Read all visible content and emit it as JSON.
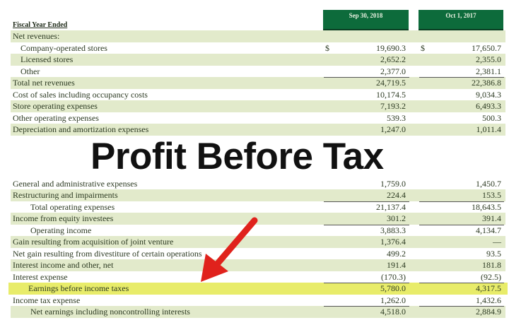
{
  "header": {
    "label": "Fiscal Year Ended",
    "columns": [
      "Sep 30, 2018",
      "Oct 1, 2017"
    ]
  },
  "overlay_text": "Profit Before Tax",
  "colors": {
    "header_green": "#0d6b3b",
    "row_shade": "#e2eacb",
    "highlight": "#e8ec6a",
    "arrow": "#e0221c"
  },
  "rows": [
    {
      "label": "Net revenues:",
      "indent": 0,
      "v1": "",
      "v2": ""
    },
    {
      "label": "Company-operated stores",
      "indent": 1,
      "cur": "$",
      "v1": "19,690.3",
      "v2": "17,650.7"
    },
    {
      "label": "Licensed stores",
      "indent": 1,
      "v1": "2,652.2",
      "v2": "2,355.0"
    },
    {
      "label": "Other",
      "indent": 1,
      "v1": "2,377.0",
      "v2": "2,381.1"
    },
    {
      "label": "Total net revenues",
      "indent": 0,
      "v1": "24,719.5",
      "v2": "22,386.8",
      "rule": true
    },
    {
      "label": "Cost of sales including occupancy costs",
      "indent": 0,
      "v1": "10,174.5",
      "v2": "9,034.3"
    },
    {
      "label": "Store operating expenses",
      "indent": 0,
      "v1": "7,193.2",
      "v2": "6,493.3"
    },
    {
      "label": "Other operating expenses",
      "indent": 0,
      "v1": "539.3",
      "v2": "500.3"
    },
    {
      "label": "Depreciation and amortization expenses",
      "indent": 0,
      "v1": "1,247.0",
      "v2": "1,011.4"
    },
    {
      "label": "General and administrative expenses",
      "indent": 0,
      "v1": "1,759.0",
      "v2": "1,450.7"
    },
    {
      "label": "Restructuring and impairments",
      "indent": 0,
      "v1": "224.4",
      "v2": "153.5"
    },
    {
      "label": "Total operating expenses",
      "indent": 2,
      "v1": "21,137.4",
      "v2": "18,643.5",
      "rule": true
    },
    {
      "label": "Income from equity investees",
      "indent": 0,
      "v1": "301.2",
      "v2": "391.4"
    },
    {
      "label": "Operating income",
      "indent": 2,
      "v1": "3,883.3",
      "v2": "4,134.7",
      "rule": true
    },
    {
      "label": "Gain resulting from acquisition of joint venture",
      "indent": 0,
      "v1": "1,376.4",
      "v2": "—"
    },
    {
      "label": "Net gain resulting from divestiture of certain operations",
      "indent": 0,
      "v1": "499.2",
      "v2": "93.5"
    },
    {
      "label": "Interest income and other, net",
      "indent": 0,
      "v1": "191.4",
      "v2": "181.8"
    },
    {
      "label": "Interest expense",
      "indent": 0,
      "v1": "(170.3)",
      "v2": "(92.5)"
    },
    {
      "label": "Earnings before income taxes",
      "indent": 2,
      "v1": "5,780.0",
      "v2": "4,317.5",
      "rule": true,
      "highlight": true
    },
    {
      "label": "Income tax expense",
      "indent": 0,
      "v1": "1,262.0",
      "v2": "1,432.6"
    },
    {
      "label": "Net earnings including noncontrolling interests",
      "indent": 2,
      "v1": "4,518.0",
      "v2": "2,884.9",
      "rule": true
    }
  ]
}
